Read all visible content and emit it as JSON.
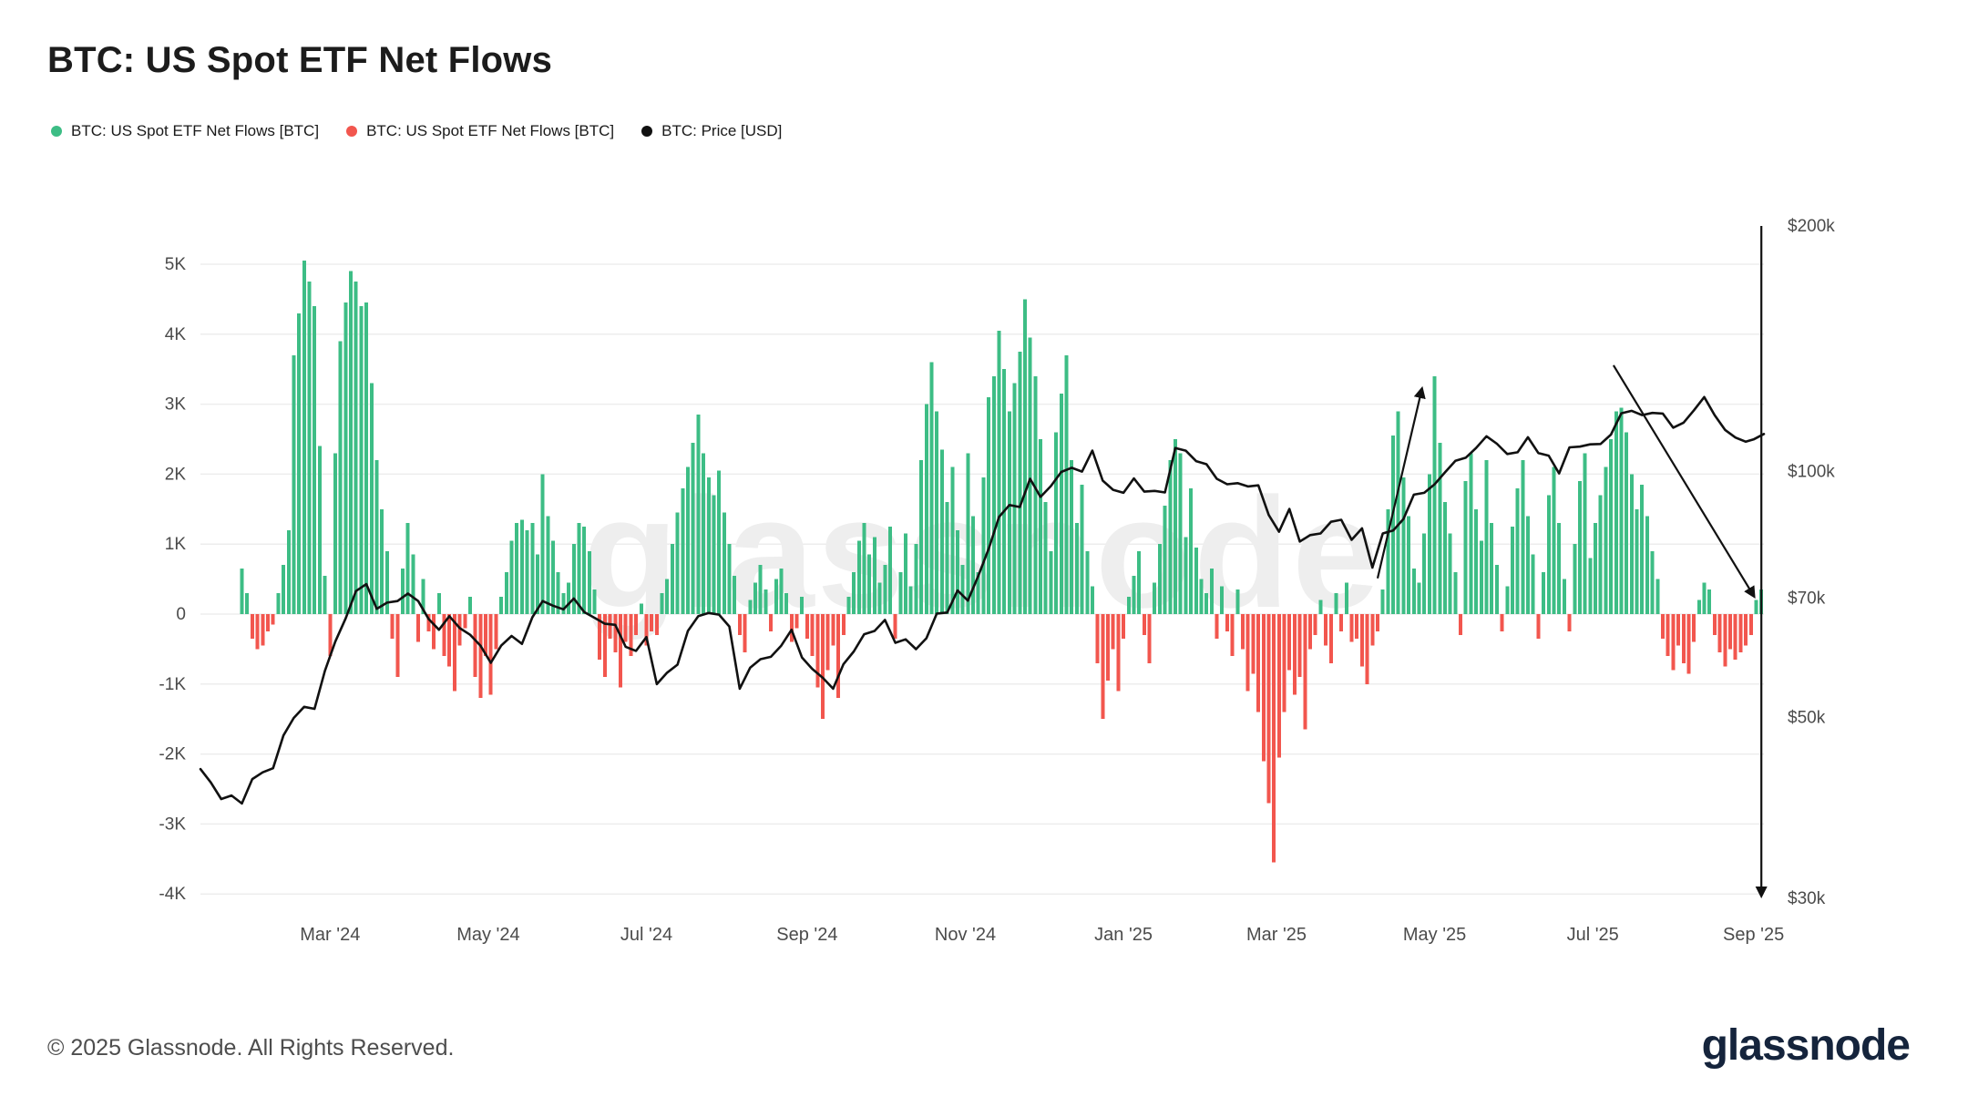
{
  "title": "BTC: US Spot ETF Net Flows",
  "watermark": "glassnode",
  "legend": {
    "items": [
      {
        "label": "BTC: US Spot ETF Net Flows [BTC]",
        "color": "#3dbd85"
      },
      {
        "label": "BTC: US Spot ETF Net Flows [BTC]",
        "color": "#f2564e"
      },
      {
        "label": "BTC: Price [USD]",
        "color": "#111111"
      }
    ]
  },
  "footer": {
    "copyright": "© 2025 Glassnode. All Rights Reserved.",
    "logo": "glassnode"
  },
  "chart_data": {
    "type": "bar+line",
    "title": "BTC: US Spot ETF Net Flows",
    "x_axis": {
      "start_date": "2024-01-11",
      "unit": "days since start",
      "total_days": 603,
      "ticks": [
        {
          "d": 50,
          "label": "Mar '24"
        },
        {
          "d": 111,
          "label": "May '24"
        },
        {
          "d": 172,
          "label": "Jul '24"
        },
        {
          "d": 234,
          "label": "Sep '24"
        },
        {
          "d": 295,
          "label": "Nov '24"
        },
        {
          "d": 356,
          "label": "Jan '25"
        },
        {
          "d": 415,
          "label": "Mar '25"
        },
        {
          "d": 476,
          "label": "May '25"
        },
        {
          "d": 537,
          "label": "Jul '25"
        },
        {
          "d": 599,
          "label": "Sep '25"
        }
      ]
    },
    "left_axis": {
      "unit": "K BTC",
      "scale": "linear",
      "range_k": [
        -4.1,
        5.5
      ],
      "grid": true,
      "ticks": [
        {
          "v": 5,
          "label": "5K"
        },
        {
          "v": 4,
          "label": "4K"
        },
        {
          "v": 3,
          "label": "3K"
        },
        {
          "v": 2,
          "label": "2K"
        },
        {
          "v": 1,
          "label": "1K"
        },
        {
          "v": 0,
          "label": "0"
        },
        {
          "v": -1,
          "label": "-1K"
        },
        {
          "v": -2,
          "label": "-2K"
        },
        {
          "v": -3,
          "label": "-3K"
        },
        {
          "v": -4,
          "label": "-4K"
        }
      ]
    },
    "right_axis": {
      "unit": "USD",
      "scale": "log",
      "ticks": [
        {
          "v": 200,
          "label": "$200k"
        },
        {
          "v": 100,
          "label": "$100k"
        },
        {
          "v": 70,
          "label": "$70k"
        },
        {
          "v": 50,
          "label": "$50k"
        },
        {
          "v": 30,
          "label": "$30k"
        }
      ]
    },
    "series": [
      {
        "name": "BTC: US Spot ETF Net Flows [BTC]",
        "type": "bar",
        "axis": "left",
        "unit": "K BTC",
        "segments": [
          {
            "start": 16,
            "step": 2,
            "values": [
              0.65,
              0.3,
              -0.35,
              -0.5,
              -0.45,
              -0.25,
              -0.15,
              0.3,
              0.7,
              1.2
            ]
          },
          {
            "start": 36,
            "step": 2,
            "values": [
              3.7,
              4.3,
              5.05,
              4.75,
              4.4,
              2.4,
              0.55,
              -0.6,
              2.3,
              3.9,
              4.45,
              4.9,
              4.75,
              4.4,
              4.45,
              3.3,
              2.2,
              1.5,
              0.9,
              -0.35,
              -0.9,
              0.65
            ]
          },
          {
            "start": 80,
            "step": 2,
            "values": [
              1.3,
              0.85,
              -0.4,
              0.5,
              -0.25,
              -0.5,
              0.3,
              -0.6,
              -0.75,
              -1.1,
              -0.45,
              -0.2,
              0.25,
              -0.9,
              -1.2,
              -0.6
            ]
          },
          {
            "start": 112,
            "step": 2,
            "values": [
              -1.15,
              -0.5,
              0.25,
              0.6,
              1.05,
              1.3,
              1.35,
              1.2,
              1.3,
              0.85,
              2.0,
              1.4,
              1.05,
              0.6,
              0.3,
              0.45,
              1.0,
              1.3,
              1.25,
              0.9
            ]
          },
          {
            "start": 152,
            "step": 2,
            "values": [
              0.35,
              -0.65,
              -0.9,
              -0.35,
              -0.55,
              -1.05,
              -0.4,
              -0.6,
              -0.3,
              0.15,
              -0.45,
              -0.25,
              -0.3
            ]
          },
          {
            "start": 178,
            "step": 2,
            "values": [
              0.3,
              0.5,
              1.0,
              1.45,
              1.8,
              2.1,
              2.45,
              2.85,
              2.3,
              1.95,
              1.7,
              2.05,
              1.45,
              1.0,
              0.55,
              -0.3
            ]
          },
          {
            "start": 210,
            "step": 2,
            "values": [
              -0.55,
              0.2,
              0.45,
              0.7,
              0.35,
              -0.25,
              0.5,
              0.65,
              0.3,
              -0.4,
              -0.2,
              0.25,
              -0.35,
              -0.6
            ]
          },
          {
            "start": 238,
            "step": 2,
            "values": [
              -1.05,
              -1.5,
              -0.8,
              -0.45,
              -1.2,
              -0.3,
              0.25,
              0.6,
              1.05,
              1.3,
              0.85,
              1.1,
              0.45,
              0.7,
              1.25
            ]
          },
          {
            "start": 268,
            "step": 2,
            "values": [
              -0.35,
              0.6,
              1.15,
              0.4,
              1.0,
              2.2,
              3.0,
              3.6,
              2.9,
              2.35,
              1.6,
              2.1,
              1.2,
              0.7,
              2.3
            ]
          },
          {
            "start": 298,
            "step": 2,
            "values": [
              1.4,
              0.6,
              1.95,
              3.1,
              3.4,
              4.05,
              3.5,
              2.9,
              3.3,
              3.75,
              4.5,
              3.95,
              3.4,
              2.5,
              1.6,
              0.9
            ]
          },
          {
            "start": 330,
            "step": 2,
            "values": [
              2.6,
              3.15,
              3.7,
              2.2,
              1.3,
              1.85,
              0.9,
              0.4,
              -0.7,
              -1.5,
              -0.95,
              -0.5,
              -1.1,
              -0.35,
              0.25
            ]
          },
          {
            "start": 360,
            "step": 2,
            "values": [
              0.55,
              0.9,
              -0.3,
              -0.7,
              0.45,
              1.0,
              1.55,
              2.2,
              2.5,
              2.3,
              1.1,
              1.8,
              0.95,
              0.5,
              0.3
            ]
          },
          {
            "start": 390,
            "step": 2,
            "values": [
              0.65,
              -0.35,
              0.4,
              -0.25,
              -0.6,
              0.35,
              -0.5,
              -1.1,
              -0.85,
              -1.4,
              -2.1,
              -2.7,
              -3.55
            ]
          },
          {
            "start": 416,
            "step": 2,
            "values": [
              -2.05,
              -1.4,
              -0.8,
              -1.15,
              -0.9,
              -1.65,
              -0.5,
              -0.3,
              0.2,
              -0.45,
              -0.7,
              0.3,
              -0.25,
              0.45,
              -0.4
            ]
          },
          {
            "start": 446,
            "step": 2,
            "values": [
              -0.35,
              -0.75,
              -1.0,
              -0.45,
              -0.25,
              0.35,
              1.5,
              2.55,
              2.9,
              1.95,
              1.4,
              0.65,
              0.45,
              1.15,
              2.0
            ]
          },
          {
            "start": 476,
            "step": 2,
            "values": [
              3.4,
              2.45,
              1.6,
              1.15,
              0.6,
              -0.3,
              1.9,
              2.3,
              1.5,
              1.05,
              2.2,
              1.3,
              0.7,
              -0.25,
              0.4
            ]
          },
          {
            "start": 506,
            "step": 2,
            "values": [
              1.25,
              1.8,
              2.2,
              1.4,
              0.85,
              -0.35,
              0.6,
              1.7,
              2.1,
              1.3,
              0.5,
              -0.25,
              1.0,
              1.9,
              2.3
            ]
          },
          {
            "start": 536,
            "step": 2,
            "values": [
              0.8,
              1.3,
              1.7,
              2.1,
              2.5,
              2.9,
              2.95,
              2.6,
              2.0,
              1.5,
              1.85,
              1.4,
              0.9,
              0.5,
              -0.35
            ]
          },
          {
            "start": 566,
            "step": 2,
            "values": [
              -0.6,
              -0.8,
              -0.45,
              -0.7,
              -0.85,
              -0.4,
              0.2,
              0.45,
              0.35,
              -0.3,
              -0.55,
              -0.75,
              -0.5,
              -0.65,
              -0.55
            ]
          },
          {
            "start": 596,
            "step": 2,
            "values": [
              -0.45,
              -0.3,
              0.2,
              0.35
            ]
          }
        ]
      },
      {
        "name": "BTC: Price [USD]",
        "type": "line",
        "axis": "right",
        "unit": "USD thousands",
        "segments": [
          {
            "start": 0,
            "step": 4,
            "values": [
              43.2,
              41.6,
              39.7,
              40.1,
              39.2,
              42.0,
              42.8,
              43.3,
              47.5,
              49.9,
              51.5,
              51.2,
              57.0
            ]
          },
          {
            "start": 52,
            "step": 4,
            "values": [
              61.9,
              66.1,
              71.4,
              72.8,
              67.9,
              69.1,
              69.4,
              70.9,
              69.4,
              66.0,
              64.0,
              66.5,
              64.3,
              63.1,
              61.2
            ]
          },
          {
            "start": 112,
            "step": 4,
            "values": [
              58.3,
              61.2,
              62.9,
              61.5,
              66.3,
              69.4,
              68.5,
              67.8,
              69.9,
              67.3,
              66.2,
              65.1,
              64.9,
              61.0,
              60.3,
              62.7,
              54.9
            ]
          },
          {
            "start": 180,
            "step": 4,
            "values": [
              56.7,
              58.0,
              63.8,
              66.5,
              67.1,
              66.8,
              64.6,
              54.2,
              57.5,
              58.9,
              59.3,
              61.2,
              64.0,
              59.2,
              57.3
            ]
          },
          {
            "start": 240,
            "step": 4,
            "values": [
              55.9,
              54.2,
              58.1,
              60.2,
              63.2,
              63.8,
              65.8
            ]
          },
          {
            "start": 268,
            "step": 4,
            "values": [
              61.7,
              62.3,
              60.6,
              62.5,
              67.0,
              67.2,
              71.5,
              69.5
            ]
          },
          {
            "start": 300,
            "step": 4,
            "values": [
              74.5,
              80.4,
              88.0,
              91.0,
              90.5,
              98.0,
              93.1,
              96.0
            ]
          },
          {
            "start": 332,
            "step": 4,
            "values": [
              99.9,
              101.1,
              100.0,
              106.1,
              97.5,
              95.0,
              94.2
            ]
          },
          {
            "start": 360,
            "step": 4,
            "values": [
              98.1,
              94.5,
              94.7,
              94.3,
              106.9,
              106.1,
              103.0,
              102.1
            ]
          },
          {
            "start": 392,
            "step": 4,
            "values": [
              98.0,
              96.5,
              96.8,
              95.9,
              96.2,
              88.5
            ]
          },
          {
            "start": 416,
            "step": 4,
            "values": [
              84.4,
              90.0,
              82.1,
              83.6,
              84.0,
              86.8,
              87.3,
              82.5
            ]
          },
          {
            "start": 448,
            "step": 4,
            "values": [
              85.2,
              76.3,
              84.0,
              84.7,
              87.5,
              93.7,
              94.2
            ]
          },
          {
            "start": 476,
            "step": 4,
            "values": [
              96.5,
              99.8,
              103.1,
              104.0,
              106.9,
              110.5,
              108.2,
              105.1
            ]
          },
          {
            "start": 508,
            "step": 4,
            "values": [
              105.6,
              110.2,
              105.4,
              104.6,
              99.5,
              107.1,
              107.3,
              108.0
            ]
          },
          {
            "start": 540,
            "step": 4,
            "values": [
              108.1,
              111.0,
              117.9,
              118.7,
              117.3,
              118.0,
              117.8
            ]
          },
          {
            "start": 568,
            "step": 4,
            "values": [
              113.2,
              114.8,
              118.9,
              123.4,
              117.3,
              112.5,
              110.1,
              108.8
            ]
          },
          {
            "start": 599,
            "step": 4,
            "values": [
              109.5,
              111.2
            ]
          }
        ]
      }
    ],
    "annotations": [
      {
        "type": "arrow",
        "from": {
          "day": 454,
          "usd_k": 74
        },
        "to": {
          "day": 471,
          "usd_k": 126
        }
      },
      {
        "type": "arrow",
        "from": {
          "day": 545,
          "usd_k": 135
        },
        "to": {
          "day": 599,
          "usd_k": 70.5
        }
      },
      {
        "type": "arrow",
        "from": {
          "day": 602,
          "usd_k": 200
        },
        "to": {
          "day": 602,
          "usd_k": 30.3
        }
      }
    ],
    "colors": {
      "positive": "#3dbd85",
      "negative": "#f2564e",
      "price": "#111111",
      "grid": "#ededed",
      "axis_text": "#4b4b4b",
      "annotation": "#111111",
      "watermark": "#eeeeee"
    },
    "legend_position": "top-left"
  }
}
